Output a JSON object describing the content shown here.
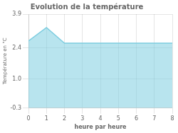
{
  "chart_data": {
    "type": "area",
    "title": "Evolution de la température",
    "xlabel": "heure par heure",
    "ylabel": "Température en °C",
    "x": [
      0,
      1,
      2,
      3,
      4,
      5,
      6,
      7,
      8
    ],
    "values": [
      2.7,
      3.3,
      2.6,
      2.6,
      2.6,
      2.6,
      2.6,
      2.6,
      2.6
    ],
    "color": "#7dcde0",
    "xlim": [
      0,
      8
    ],
    "ylim": [
      -0.3,
      3.9
    ],
    "xticks": [
      0,
      1,
      2,
      3,
      4,
      5,
      6,
      7,
      8
    ],
    "yticks": [
      -0.3,
      {
        "value": 1.0,
        "label": "1.0"
      },
      2.4,
      3.9
    ],
    "grid": true
  }
}
